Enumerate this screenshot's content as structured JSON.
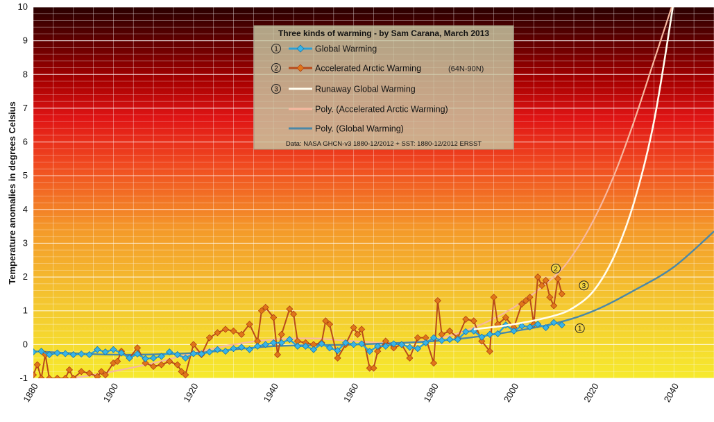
{
  "chart_data": {
    "type": "line",
    "title": "Three kinds of warming - by Sam Carana, March 2013",
    "note": "Data: NASA GHCN-v3 1880-12/2012 + SST: 1880-12/2012 ERSST",
    "ylabel": "Temperature anomalies  in degrees Celsius",
    "xlabel": "",
    "xlim": [
      1880,
      2050
    ],
    "ylim": [
      -1,
      10
    ],
    "yticks": [
      "-1",
      "0",
      "1",
      "2",
      "3",
      "4",
      "5",
      "6",
      "7",
      "8",
      "9",
      "10"
    ],
    "xticks": [
      "1880",
      "1900",
      "1920",
      "1940",
      "1960",
      "1980",
      "2000",
      "2020",
      "2040"
    ],
    "grid": true,
    "legend_placement": "top-center",
    "series": [
      {
        "name": "Global Warming",
        "number": "1",
        "color": "#2a9fd6",
        "marker": "diamond",
        "x": [
          1880,
          1882,
          1884,
          1886,
          1888,
          1890,
          1892,
          1894,
          1896,
          1898,
          1900,
          1902,
          1904,
          1906,
          1908,
          1910,
          1912,
          1914,
          1916,
          1918,
          1920,
          1922,
          1924,
          1926,
          1928,
          1930,
          1932,
          1934,
          1936,
          1938,
          1940,
          1942,
          1944,
          1946,
          1948,
          1950,
          1952,
          1954,
          1956,
          1958,
          1960,
          1962,
          1964,
          1966,
          1968,
          1970,
          1972,
          1974,
          1976,
          1978,
          1980,
          1982,
          1984,
          1986,
          1988,
          1990,
          1992,
          1994,
          1996,
          1998,
          2000,
          2002,
          2004,
          2006,
          2008,
          2010,
          2012
        ],
        "y": [
          -0.22,
          -0.2,
          -0.3,
          -0.25,
          -0.27,
          -0.3,
          -0.28,
          -0.3,
          -0.15,
          -0.22,
          -0.15,
          -0.25,
          -0.4,
          -0.28,
          -0.42,
          -0.4,
          -0.35,
          -0.22,
          -0.3,
          -0.4,
          -0.27,
          -0.28,
          -0.22,
          -0.15,
          -0.2,
          -0.12,
          -0.08,
          -0.15,
          -0.05,
          0.0,
          0.05,
          0.05,
          0.15,
          -0.05,
          -0.05,
          -0.15,
          0.02,
          -0.1,
          -0.18,
          0.05,
          0.0,
          0.02,
          -0.2,
          -0.05,
          -0.05,
          0.02,
          0.0,
          -0.08,
          -0.12,
          0.05,
          0.2,
          0.12,
          0.15,
          0.15,
          0.38,
          0.4,
          0.22,
          0.3,
          0.32,
          0.58,
          0.4,
          0.55,
          0.52,
          0.6,
          0.5,
          0.65,
          0.58
        ]
      },
      {
        "name": "Accelerated Arctic Warming",
        "extra": "(64N-90N)",
        "number": "2",
        "color": "#d2691e",
        "marker": "diamond",
        "x": [
          1880,
          1881,
          1882,
          1883,
          1884,
          1886,
          1888,
          1889,
          1890,
          1892,
          1894,
          1896,
          1897,
          1898,
          1900,
          1901,
          1902,
          1904,
          1906,
          1908,
          1910,
          1912,
          1914,
          1916,
          1917,
          1918,
          1920,
          1922,
          1924,
          1926,
          1928,
          1930,
          1932,
          1934,
          1936,
          1937,
          1938,
          1940,
          1941,
          1942,
          1944,
          1945,
          1946,
          1948,
          1950,
          1952,
          1953,
          1954,
          1956,
          1958,
          1960,
          1961,
          1962,
          1964,
          1965,
          1966,
          1968,
          1970,
          1972,
          1974,
          1976,
          1978,
          1980,
          1981,
          1982,
          1984,
          1986,
          1988,
          1990,
          1992,
          1994,
          1995,
          1996,
          1998,
          2000,
          2002,
          2003,
          2004,
          2005,
          2006,
          2007,
          2008,
          2009,
          2010,
          2011,
          2012
        ],
        "y": [
          -0.9,
          -0.6,
          -1.0,
          -0.3,
          -1.0,
          -1.0,
          -1.0,
          -0.75,
          -1.0,
          -0.8,
          -0.85,
          -0.95,
          -0.8,
          -0.9,
          -0.55,
          -0.5,
          -0.2,
          -0.4,
          -0.1,
          -0.55,
          -0.65,
          -0.6,
          -0.5,
          -0.6,
          -0.8,
          -0.9,
          0.0,
          -0.3,
          0.2,
          0.35,
          0.45,
          0.4,
          0.3,
          0.6,
          0.1,
          1.0,
          1.1,
          0.8,
          -0.3,
          0.3,
          1.05,
          0.9,
          0.1,
          0.05,
          0.0,
          0.05,
          0.7,
          0.6,
          -0.4,
          0.0,
          0.5,
          0.3,
          0.45,
          -0.7,
          -0.7,
          -0.2,
          0.1,
          -0.1,
          0.0,
          -0.4,
          0.2,
          0.2,
          -0.55,
          1.3,
          0.3,
          0.4,
          0.2,
          0.75,
          0.7,
          0.1,
          -0.2,
          1.4,
          0.6,
          0.8,
          0.5,
          1.2,
          1.3,
          1.4,
          0.6,
          2.0,
          1.75,
          1.9,
          1.4,
          1.15,
          1.95,
          1.5
        ]
      },
      {
        "name": "Runaway Global Warming",
        "number": "3",
        "color": "#fffdf0",
        "curve": [
          [
            1990,
            0.45
          ],
          [
            2000,
            0.6
          ],
          [
            2010,
            0.85
          ],
          [
            2015,
            1.1
          ],
          [
            2020,
            1.6
          ],
          [
            2025,
            2.6
          ],
          [
            2030,
            4.2
          ],
          [
            2035,
            6.6
          ],
          [
            2040,
            10.2
          ]
        ]
      },
      {
        "name": "Poly. (Accelerated Arctic Warming)",
        "color": "#f7b8a0",
        "curve": [
          [
            1880,
            -1.15
          ],
          [
            1895,
            -0.9
          ],
          [
            1910,
            -0.55
          ],
          [
            1920,
            -0.25
          ],
          [
            1930,
            0.0
          ],
          [
            1940,
            0.15
          ],
          [
            1950,
            0.18
          ],
          [
            1960,
            0.1
          ],
          [
            1970,
            0.05
          ],
          [
            1980,
            0.15
          ],
          [
            1990,
            0.5
          ],
          [
            2000,
            1.1
          ],
          [
            2010,
            2.0
          ],
          [
            2015,
            2.7
          ],
          [
            2020,
            3.7
          ],
          [
            2025,
            5.0
          ],
          [
            2030,
            6.6
          ],
          [
            2035,
            8.4
          ],
          [
            2040,
            10.2
          ]
        ]
      },
      {
        "name": "Poly. (Global Warming)",
        "color": "#4a88a8",
        "curve": [
          [
            1880,
            -0.2
          ],
          [
            1900,
            -0.3
          ],
          [
            1920,
            -0.25
          ],
          [
            1940,
            -0.05
          ],
          [
            1960,
            0.0
          ],
          [
            1980,
            0.1
          ],
          [
            1995,
            0.3
          ],
          [
            2010,
            0.62
          ],
          [
            2020,
            1.0
          ],
          [
            2030,
            1.6
          ],
          [
            2040,
            2.3
          ],
          [
            2050,
            3.35
          ]
        ]
      }
    ]
  }
}
